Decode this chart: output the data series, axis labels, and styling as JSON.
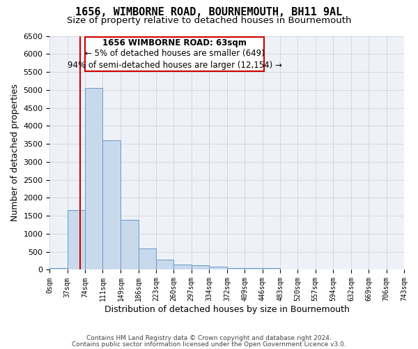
{
  "title": "1656, WIMBORNE ROAD, BOURNEMOUTH, BH11 9AL",
  "subtitle": "Size of property relative to detached houses in Bournemouth",
  "xlabel": "Distribution of detached houses by size in Bournemouth",
  "ylabel": "Number of detached properties",
  "footnote1": "Contains HM Land Registry data © Crown copyright and database right 2024.",
  "footnote2": "Contains public sector information licensed under the Open Government Licence v3.0.",
  "annotation_title": "1656 WIMBORNE ROAD: 63sqm",
  "annotation_line1": "← 5% of detached houses are smaller (649)",
  "annotation_line2": "94% of semi-detached houses are larger (12,154) →",
  "bin_edges": [
    0,
    37,
    74,
    111,
    149,
    186,
    223,
    260,
    297,
    334,
    372,
    409,
    446,
    483,
    520,
    557,
    594,
    632,
    669,
    706,
    743
  ],
  "bin_counts": [
    50,
    1650,
    5050,
    3600,
    1380,
    600,
    280,
    150,
    120,
    80,
    50,
    50,
    50,
    0,
    0,
    0,
    0,
    0,
    0,
    0
  ],
  "bar_facecolor": "#c9d9ec",
  "bar_edgecolor": "#6699cc",
  "grid_color": "#cccccc",
  "bg_color": "#eef2f8",
  "property_line_x": 63,
  "property_line_color": "#cc0000",
  "annotation_box_color": "#cc0000",
  "ylim": [
    0,
    6500
  ],
  "xlim": [
    0,
    743
  ],
  "title_fontsize": 11,
  "subtitle_fontsize": 9.5,
  "tick_fontsize": 7,
  "label_fontsize": 9,
  "annotation_fontsize": 8.5,
  "footnote_fontsize": 6.5
}
